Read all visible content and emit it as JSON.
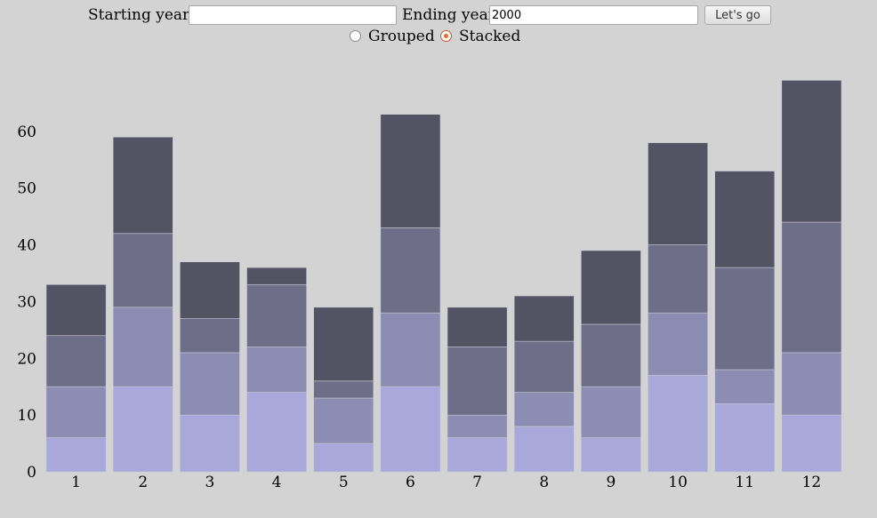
{
  "controls": {
    "start_label": "Starting year",
    "start_value": "",
    "end_label": "Ending year",
    "end_value": "2000",
    "go_label": "Let's go",
    "mode_options": [
      {
        "label": "Grouped",
        "checked": false
      },
      {
        "label": "Stacked",
        "checked": true
      }
    ]
  },
  "chart_data": {
    "type": "bar",
    "stacked": true,
    "categories": [
      "1",
      "2",
      "3",
      "4",
      "5",
      "6",
      "7",
      "8",
      "9",
      "10",
      "11",
      "12"
    ],
    "series": [
      {
        "values": [
          6,
          15,
          10,
          14,
          5,
          15,
          6,
          8,
          6,
          17,
          12,
          10
        ],
        "color": "#aaa8db"
      },
      {
        "values": [
          9,
          14,
          11,
          8,
          8,
          13,
          4,
          6,
          9,
          11,
          6,
          11
        ],
        "color": "#8d8cb2"
      },
      {
        "values": [
          9,
          13,
          6,
          11,
          3,
          15,
          12,
          9,
          11,
          12,
          18,
          23
        ],
        "color": "#6f6e89"
      },
      {
        "values": [
          9,
          17,
          10,
          3,
          13,
          20,
          7,
          8,
          13,
          18,
          17,
          25
        ],
        "color": "#545363"
      }
    ],
    "y_ticks": [
      "0",
      "10",
      "20",
      "30",
      "40",
      "50",
      "60"
    ],
    "ylim": [
      0,
      70
    ],
    "grid": false,
    "title": "",
    "xlabel": "",
    "ylabel": ""
  }
}
